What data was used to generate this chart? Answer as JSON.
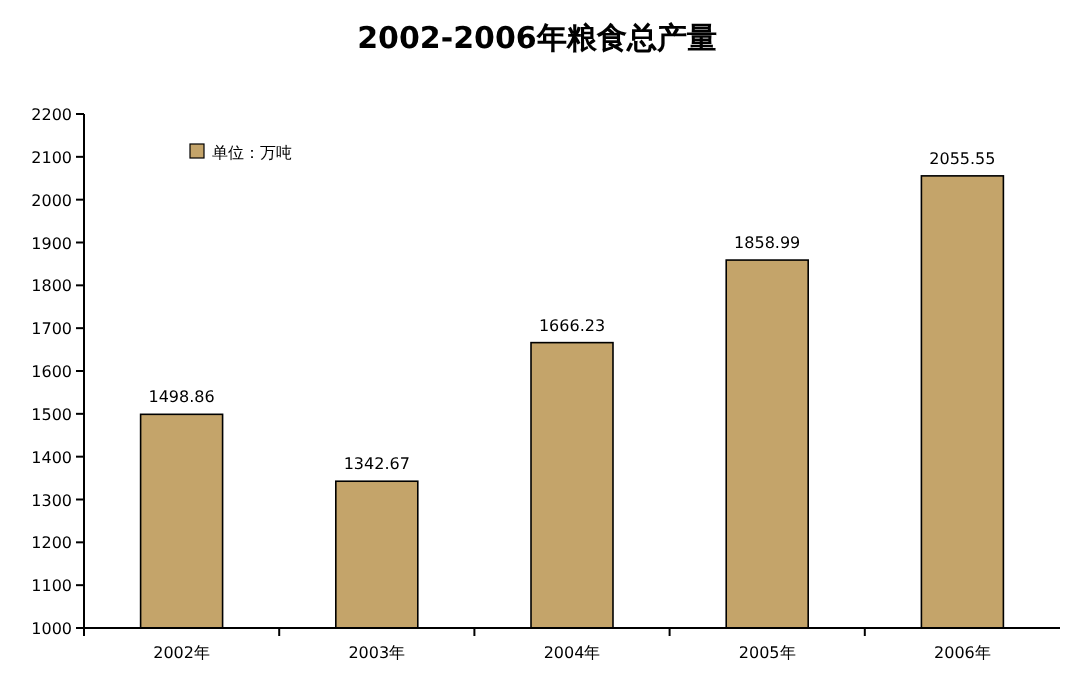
{
  "chart_data": {
    "type": "bar",
    "title": "2002-2006年粮食总产量",
    "categories": [
      "2002年",
      "2003年",
      "2004年",
      "2005年",
      "2006年"
    ],
    "series": [
      {
        "name": "单位：万吨",
        "color": "#c4a46a",
        "values": [
          1498.86,
          1342.67,
          1666.23,
          1858.99,
          2055.55
        ]
      }
    ],
    "ylim": [
      1000,
      2200
    ],
    "yticks": [
      1000,
      1100,
      1200,
      1300,
      1400,
      1500,
      1600,
      1700,
      1800,
      1900,
      2000,
      2100,
      2200
    ],
    "data_labels": true,
    "legend": "top left",
    "grid": false
  }
}
